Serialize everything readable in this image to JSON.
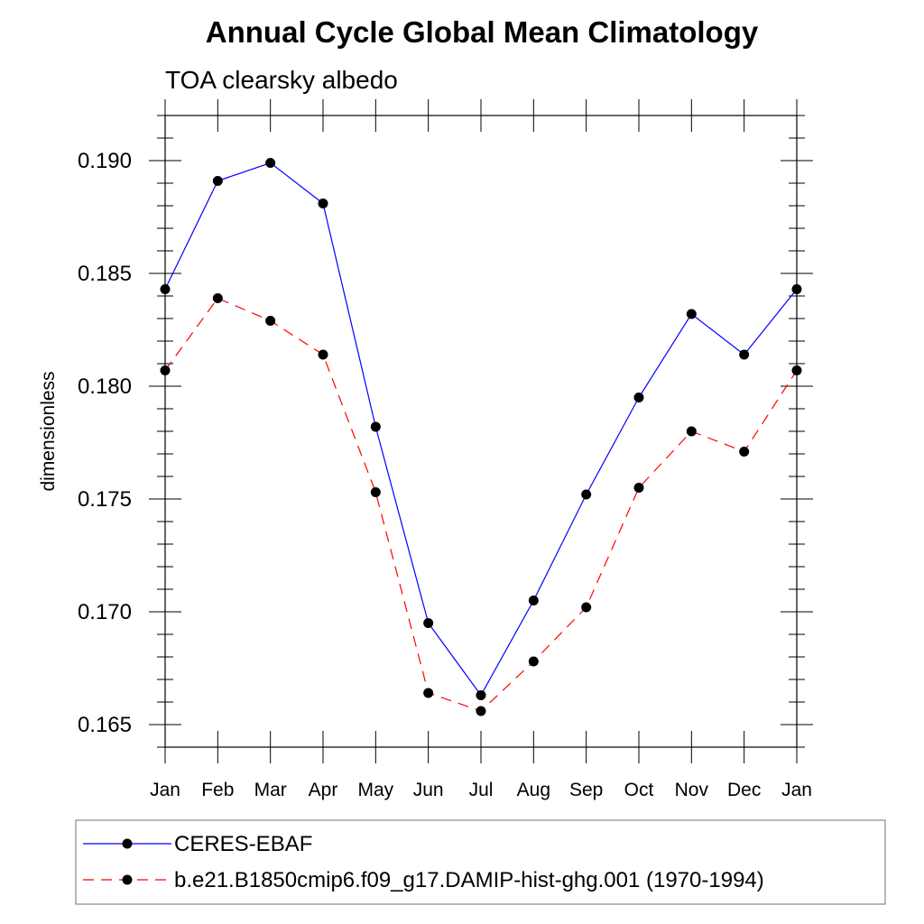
{
  "chart_data": {
    "type": "line",
    "title": "Annual Cycle Global Mean Climatology",
    "subtitle": "TOA clearsky albedo",
    "ylabel": "dimensionless",
    "xlabel": "",
    "categories": [
      "Jan",
      "Feb",
      "Mar",
      "Apr",
      "May",
      "Jun",
      "Jul",
      "Aug",
      "Sep",
      "Oct",
      "Nov",
      "Dec",
      "Jan"
    ],
    "ylim": [
      0.164,
      0.192
    ],
    "yticks": [
      "0.165",
      "0.170",
      "0.175",
      "0.180",
      "0.185",
      "0.190"
    ],
    "grid": false,
    "legend_position": "bottom",
    "series": [
      {
        "name": "CERES-EBAF",
        "color": "#0000ff",
        "dash": "solid",
        "values": [
          0.1843,
          0.1891,
          0.1899,
          0.1881,
          0.1782,
          0.1695,
          0.1663,
          0.1705,
          0.1752,
          0.1795,
          0.1832,
          0.1814,
          0.1843
        ]
      },
      {
        "name": "b.e21.B1850cmip6.f09_g17.DAMIP-hist-ghg.001 (1970-1994)",
        "color": "#ff0000",
        "dash": "dashed",
        "values": [
          0.1807,
          0.1839,
          0.1829,
          0.1814,
          0.1753,
          0.1664,
          0.1656,
          0.1678,
          0.1702,
          0.1755,
          0.178,
          0.1771,
          0.1807
        ]
      }
    ]
  }
}
